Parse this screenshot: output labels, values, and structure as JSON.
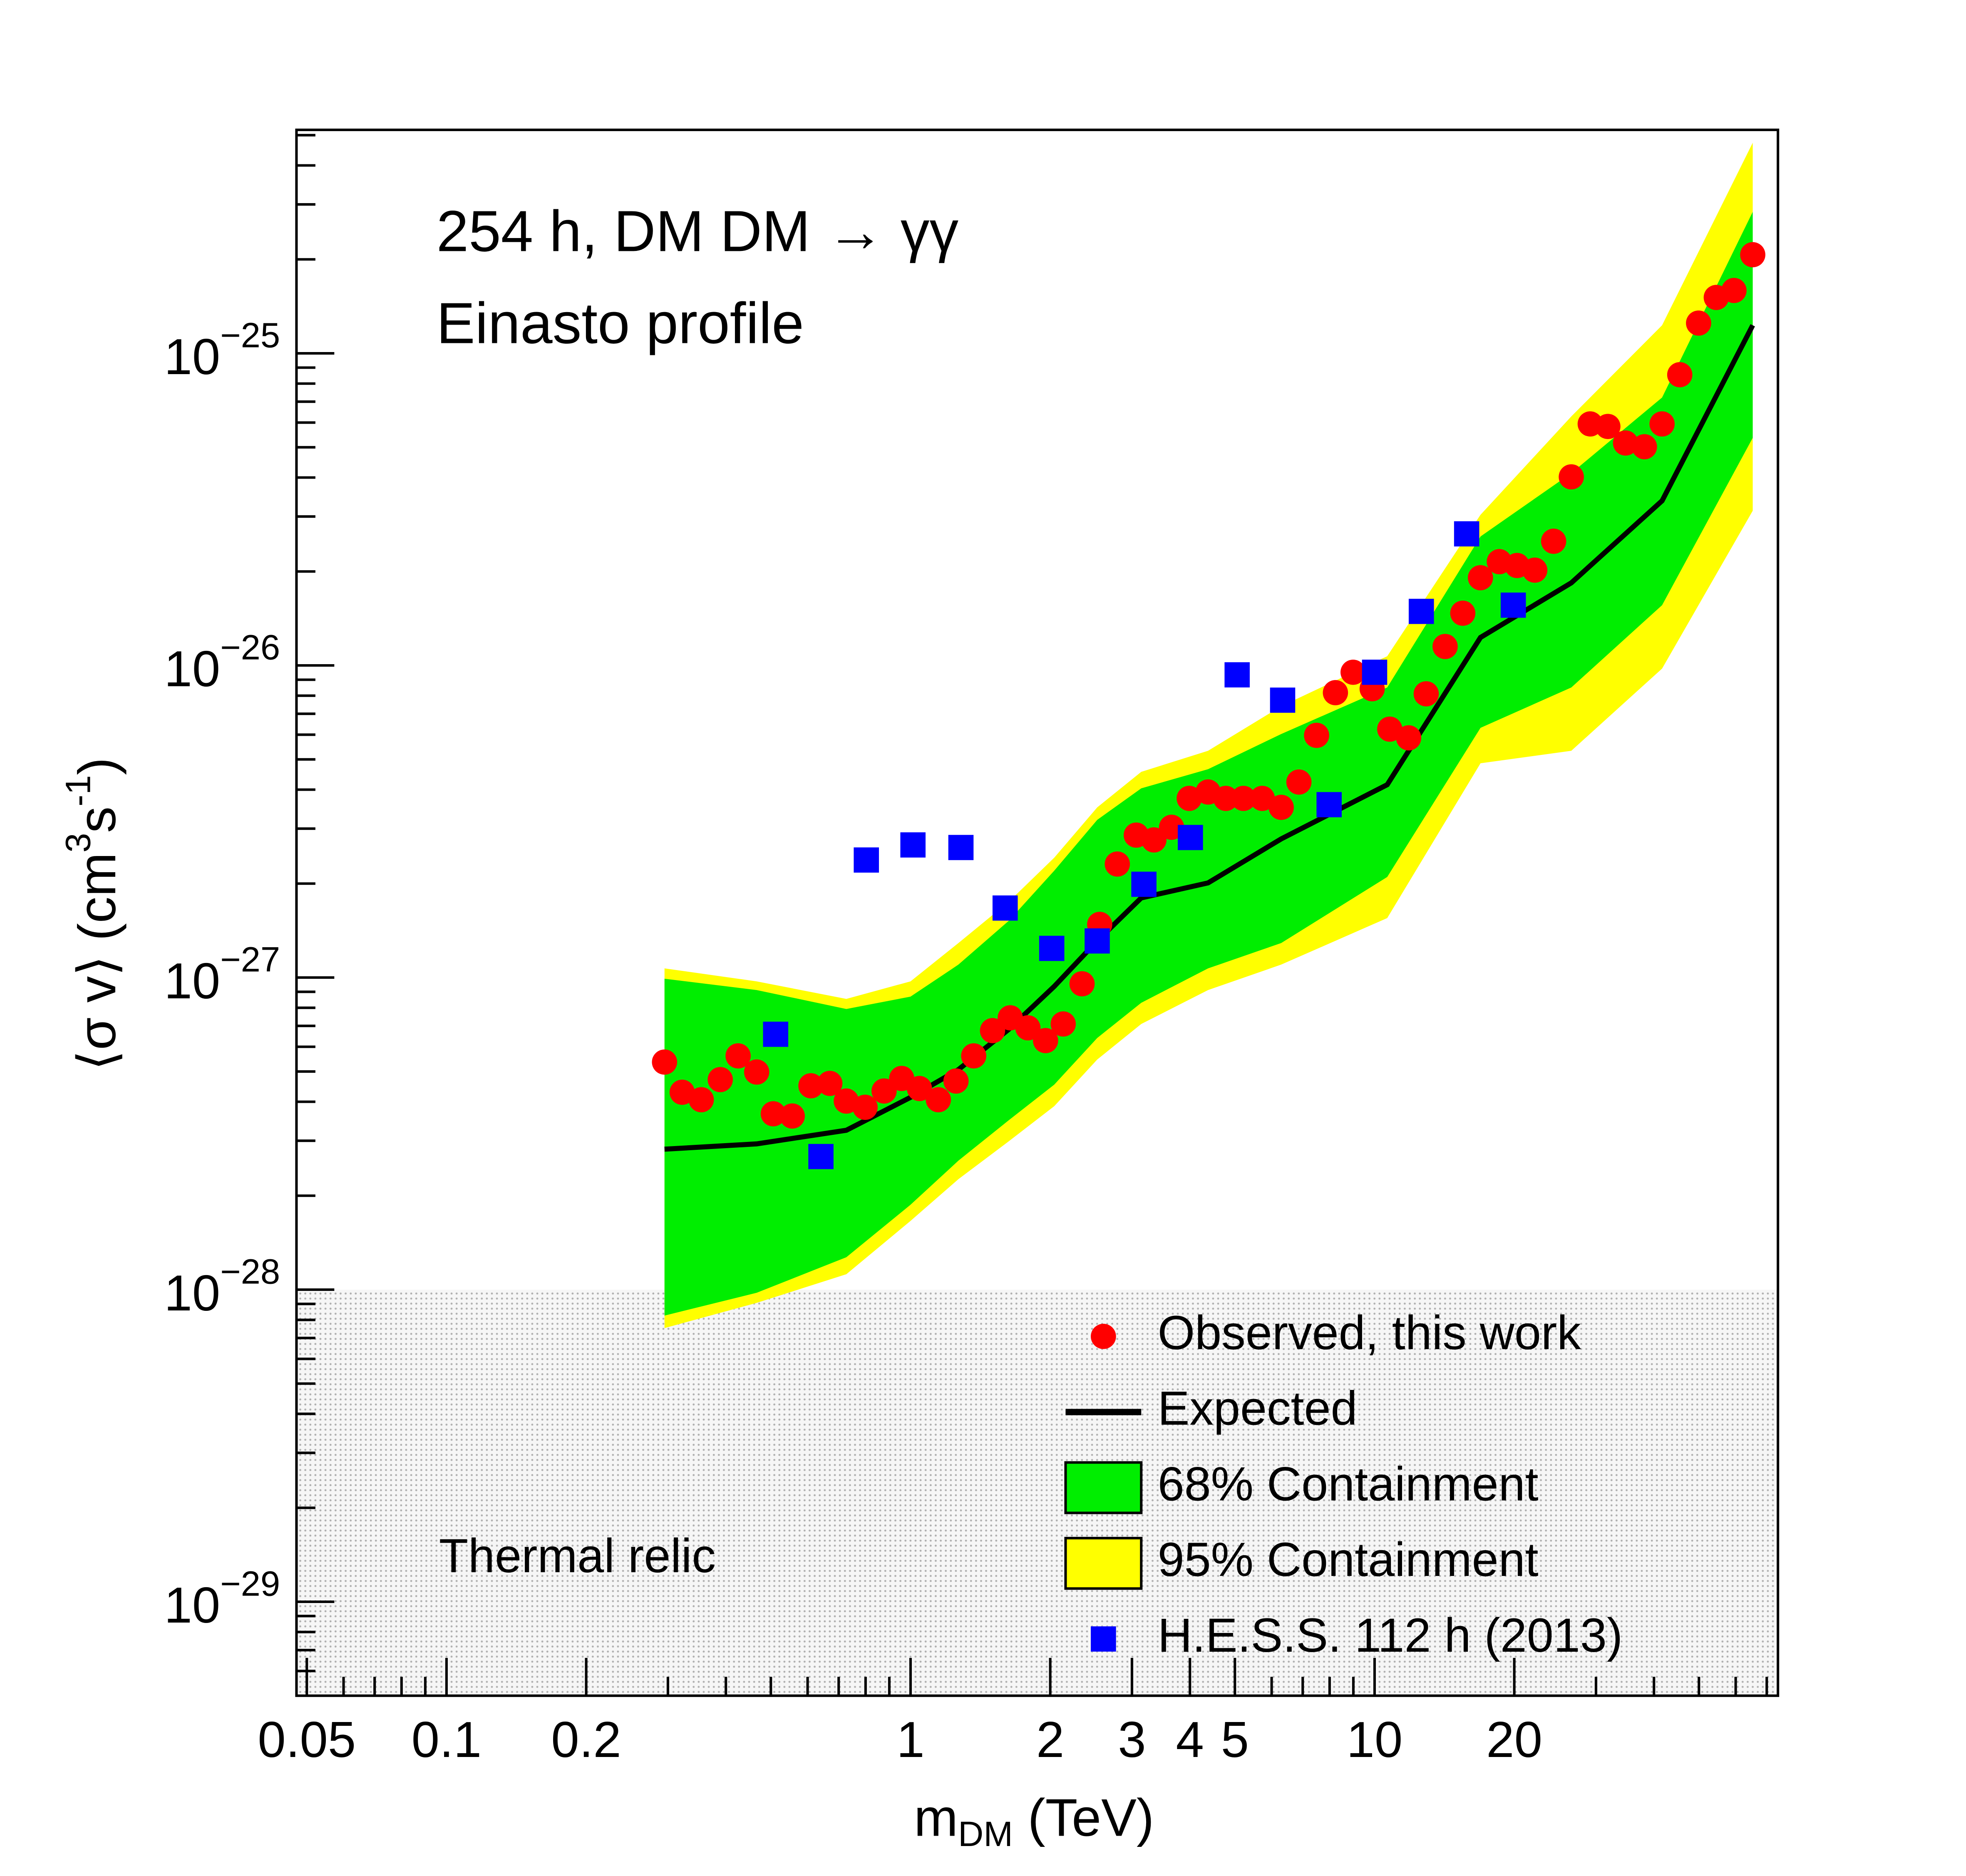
{
  "chart_data": {
    "type": "scatter",
    "annotations": [
      "254 h, DM DM → γγ",
      "Einasto profile"
    ],
    "x_label": [
      "m",
      "DM",
      " (TeV)"
    ],
    "y_label": [
      "⟨σ v⟩ (cm",
      "3",
      "s",
      "-1",
      ")"
    ],
    "x_log": true,
    "y_log": true,
    "xlim": [
      0.0475,
      74
    ],
    "ylim": [
      5e-30,
      5.2e-25
    ],
    "xticks": [
      0.05,
      0.1,
      0.2,
      1,
      2,
      3,
      4,
      5,
      10,
      20
    ],
    "xminor": [
      0.06,
      0.07,
      0.08,
      0.09,
      0.3,
      0.4,
      0.5,
      0.6,
      0.7,
      0.8,
      0.9,
      6,
      7,
      8,
      9,
      30,
      40,
      50,
      60,
      70
    ],
    "yticks": [
      {
        "value": 1e-29,
        "label": "10",
        "sup": "−29"
      },
      {
        "value": 1e-28,
        "label": "10",
        "sup": "−28"
      },
      {
        "value": 1e-27,
        "label": "10",
        "sup": "−27"
      },
      {
        "value": 1e-26,
        "label": "10",
        "sup": "−26"
      },
      {
        "value": 1e-25,
        "label": "10",
        "sup": "−25"
      }
    ],
    "yminor": [
      6e-30,
      7e-30,
      8e-30,
      9e-30,
      2e-29,
      3e-29,
      4e-29,
      5e-29,
      6e-29,
      7e-29,
      8e-29,
      9e-29,
      2e-28,
      3e-28,
      4e-28,
      5e-28,
      6e-28,
      7e-28,
      8e-28,
      9e-28,
      2e-27,
      3e-27,
      4e-27,
      5e-27,
      6e-27,
      7e-27,
      8e-27,
      9e-27,
      2e-26,
      3e-26,
      4e-26,
      5e-26,
      6e-26,
      7e-26,
      8e-26,
      9e-26,
      2e-25,
      3e-25,
      4e-25,
      5e-25
    ],
    "thermal_relic": {
      "label": "Thermal relic",
      "value": 1e-28,
      "color": "#a0a0a0"
    },
    "legend": "bottom right",
    "series": [
      {
        "name": "Observed, this work",
        "kind": "points",
        "marker": "circle",
        "color": "#ff0000",
        "x": [
          0.295,
          0.322,
          0.354,
          0.389,
          0.425,
          0.466,
          0.506,
          0.556,
          0.61,
          0.67,
          0.727,
          0.798,
          0.877,
          0.957,
          1.045,
          1.148,
          1.253,
          1.368,
          1.502,
          1.64,
          1.79,
          1.954,
          2.133,
          2.342,
          2.556,
          2.79,
          3.065,
          3.345,
          3.652,
          3.986,
          4.377,
          4.778,
          5.216,
          5.727,
          6.292,
          6.869,
          7.499,
          8.234,
          8.989,
          9.88,
          10.78,
          11.84,
          12.92,
          14.19,
          15.49,
          16.91,
          18.57,
          20.28,
          22.14,
          24.31,
          26.54,
          29.15,
          31.82,
          34.74,
          38.15,
          41.64,
          45.46,
          49.91,
          54.49,
          59.49,
          65.3
        ],
        "values": [
          5.36e-28,
          4.29e-28,
          4.06e-28,
          4.71e-28,
          5.61e-28,
          4.98e-28,
          3.66e-28,
          3.6e-28,
          4.5e-28,
          4.58e-28,
          4.02e-28,
          3.84e-28,
          4.33e-28,
          4.75e-28,
          4.41e-28,
          4.06e-28,
          4.66e-28,
          5.61e-28,
          6.76e-28,
          7.43e-28,
          6.9e-28,
          6.28e-28,
          7.1e-28,
          9.55e-28,
          1.48e-27,
          2.31e-27,
          2.86e-27,
          2.76e-27,
          3.03e-27,
          3.75e-27,
          3.93e-27,
          3.75e-27,
          3.75e-27,
          3.75e-27,
          3.51e-27,
          4.23e-27,
          5.97e-27,
          8.18e-27,
          9.51e-27,
          8.42e-27,
          6.25e-27,
          5.86e-27,
          8.11e-27,
          1.15e-26,
          1.47e-26,
          1.91e-26,
          2.15e-26,
          2.09e-26,
          2.02e-26,
          2.5e-26,
          4.02e-26,
          5.94e-26,
          5.83e-26,
          5.16e-26,
          5.02e-26,
          5.94e-26,
          8.54e-26,
          1.25e-25,
          1.51e-25,
          1.59e-25,
          2.07e-25
        ]
      },
      {
        "name": "Expected",
        "kind": "line",
        "color": "#000000",
        "x": [
          0.295,
          0.466,
          0.727,
          1.0,
          1.268,
          1.629,
          2.04,
          2.525,
          3.141,
          4.377,
          6.292,
          10.65,
          16.91,
          26.54,
          41.64,
          65.3
        ],
        "values": [
          2.82e-28,
          2.93e-28,
          3.24e-28,
          4.13e-28,
          5.07e-28,
          6.83e-28,
          9.37e-28,
          1.31e-27,
          1.8e-27,
          2.01e-27,
          2.78e-27,
          4.15e-27,
          1.23e-26,
          1.84e-26,
          3.37e-26,
          1.23e-25
        ]
      },
      {
        "name": "68% Containment",
        "kind": "band",
        "color": "#00ee00",
        "x": [
          0.295,
          0.466,
          0.727,
          1.0,
          1.268,
          1.629,
          2.04,
          2.525,
          3.141,
          4.377,
          6.292,
          10.65,
          16.91,
          26.54,
          41.64,
          65.3
        ],
        "upper": [
          9.91e-28,
          9.12e-28,
          7.93e-28,
          8.69e-28,
          1.1e-27,
          1.52e-27,
          2.2e-27,
          3.2e-27,
          4.04e-27,
          4.65e-27,
          6.03e-27,
          8.5e-27,
          2.59e-26,
          4.13e-26,
          7.22e-26,
          2.84e-25
        ],
        "lower": [
          8.26e-29,
          9.77e-29,
          1.27e-28,
          1.87e-28,
          2.59e-28,
          3.49e-28,
          4.54e-28,
          6.4e-28,
          8.3e-28,
          1.07e-27,
          1.29e-27,
          2.1e-27,
          6.31e-27,
          8.5e-27,
          1.56e-26,
          5.36e-26
        ]
      },
      {
        "name": "95% Containment",
        "kind": "band",
        "color": "#ffff00",
        "x": [
          0.295,
          0.466,
          0.727,
          1.0,
          1.268,
          1.629,
          2.04,
          2.525,
          3.141,
          4.377,
          6.292,
          10.65,
          16.91,
          26.54,
          41.64,
          65.3
        ],
        "upper": [
          1.07e-27,
          9.72e-28,
          8.54e-28,
          9.72e-28,
          1.29e-27,
          1.75e-27,
          2.42e-27,
          3.51e-27,
          4.56e-27,
          5.33e-27,
          7.4e-27,
          1.07e-26,
          3.04e-26,
          6.28e-26,
          1.23e-25,
          4.73e-25
        ],
        "lower": [
          7.53e-29,
          9.07e-29,
          1.12e-28,
          1.66e-28,
          2.26e-28,
          2.99e-28,
          3.87e-28,
          5.46e-28,
          7.1e-28,
          9.12e-28,
          1.1e-27,
          1.55e-27,
          4.86e-27,
          5.33e-27,
          9.77e-27,
          3.13e-26
        ]
      },
      {
        "name": "H.E.S.S. 112 h (2013)",
        "kind": "points",
        "marker": "square",
        "color": "#0000ff",
        "x": [
          0.512,
          0.641,
          0.803,
          1.012,
          1.284,
          1.599,
          2.015,
          2.525,
          3.183,
          4.009,
          5.056,
          6.336,
          7.98,
          10.0,
          12.61,
          15.79,
          19.9
        ],
        "values": [
          6.58e-28,
          2.67e-28,
          2.38e-27,
          2.66e-27,
          2.61e-27,
          1.67e-27,
          1.24e-27,
          1.31e-27,
          1.99e-27,
          2.81e-27,
          9.33e-27,
          7.74e-27,
          3.58e-27,
          9.51e-27,
          1.49e-26,
          2.64e-26,
          1.56e-26
        ]
      }
    ]
  }
}
